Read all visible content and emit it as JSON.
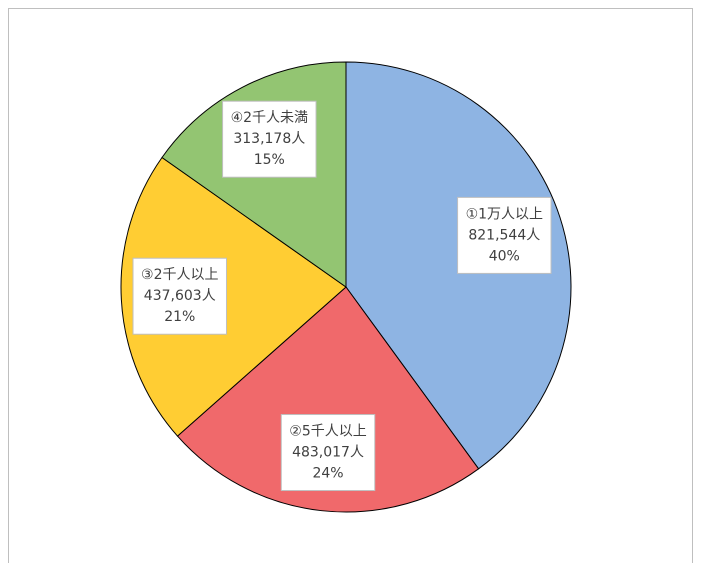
{
  "chart_data": {
    "type": "pie",
    "categories": [
      "①1万人以上",
      "②5千人以上",
      "③2千人以上",
      "④2千人未満"
    ],
    "values": [
      821544,
      483017,
      437603,
      313178
    ],
    "value_labels": [
      "821,544人",
      "483,017人",
      "437,603人",
      "313,178人"
    ],
    "percentages": [
      40,
      24,
      21,
      15
    ],
    "percentage_labels": [
      "40%",
      "24%",
      "21%",
      "15%"
    ],
    "colors": [
      "#8eb4e3",
      "#f0696b",
      "#ffcd33",
      "#93c572"
    ]
  }
}
